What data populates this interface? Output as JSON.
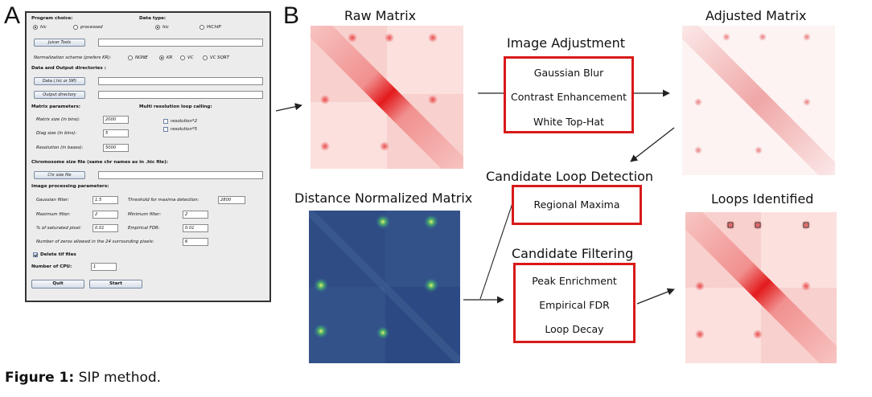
{
  "panel_a": {
    "letter": "A",
    "gui": {
      "program_choice_label": "Program choice:",
      "program_options": [
        "hic",
        "processed"
      ],
      "data_type_label": "Data type:",
      "data_type_options": [
        "hic",
        "HiChIP"
      ],
      "juicer_tools_button": "Juicer Tools",
      "normalization_label": "Normalization scheme (prefers KR):",
      "normalization_options": [
        "NONE",
        "KR",
        "VC",
        "VC SQRT"
      ],
      "data_output_header": "Data and Output directories :",
      "data_button": "Data (.hic or SIP)",
      "output_button": "Output directory",
      "matrix_params_header": "Matrix parameters:",
      "multi_res_header": "Multi resolution loop calling:",
      "matrix_size_label": "Matrix size (in bins):",
      "matrix_size_value": "2000",
      "diag_size_label": "Diag size (in bins):",
      "diag_size_value": "5",
      "resolution_label": "Resolution (in bases):",
      "resolution_value": "5000",
      "resolution_x2": "resolution*2",
      "resolution_x5": "resolution*5",
      "chrom_size_header": "Chromosome size file (same chr names as in .hic file):",
      "chr_size_button": "Chr size file",
      "image_params_header": "Image processing parameters:",
      "gaussian_label": "Gaussian filter:",
      "gaussian_value": "1.5",
      "threshold_label": "Threshold for maxima detection:",
      "threshold_value": "2800",
      "maximum_label": "Maximum filter:",
      "maximum_value": "2",
      "minimum_label": "Minimum filter:",
      "minimum_value": "2",
      "saturated_label": "% of saturated pixel:",
      "saturated_value": "0.01",
      "fdr_label": "Empirical FDR:",
      "fdr_value": "0.01",
      "zeros_label": "Number of zeros allowed in the 24 surrounding pixels:",
      "zeros_value": "6",
      "delete_tif_label": "Delete tif files",
      "cpu_label": "Number of CPU:",
      "cpu_value": "1",
      "quit_button": "Quit",
      "start_button": "Start"
    }
  },
  "panel_b": {
    "letter": "B",
    "titles": {
      "raw": "Raw Matrix",
      "adjusted": "Adjusted Matrix",
      "distance": "Distance Normalized Matrix",
      "loops": "Loops Identified"
    },
    "image_adjustment": {
      "title": "Image Adjustment",
      "steps": [
        "Gaussian Blur",
        "Contrast Enhancement",
        "White Top-Hat"
      ]
    },
    "candidate_detection": {
      "title": "Candidate Loop Detection",
      "steps": [
        "Regional Maxima"
      ]
    },
    "candidate_filtering": {
      "title": "Candidate Filtering",
      "steps": [
        "Peak Enrichment",
        "Empirical FDR",
        "Loop Decay"
      ]
    },
    "colors": {
      "box_border": "#d81919",
      "heat_red": "#e31a1c",
      "viridis_dark": "#3b4f8a",
      "viridis_bright": "#c8f060"
    }
  },
  "caption": {
    "label": "Figure 1:",
    "text": " SIP method."
  }
}
